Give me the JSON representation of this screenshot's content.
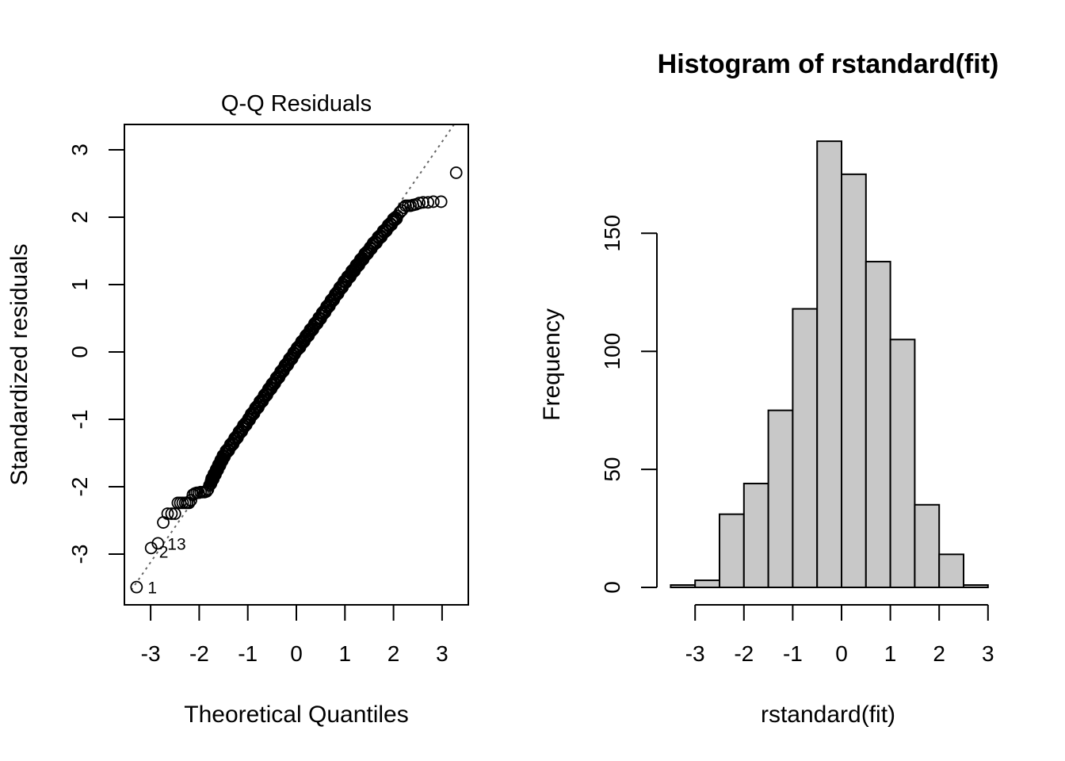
{
  "chart_data": [
    {
      "type": "scatter",
      "title": "Q-Q Residuals",
      "xlabel": "Theoretical Quantiles",
      "ylabel": "Standardized residuals",
      "xlim": [
        -3.4,
        3.5
      ],
      "ylim": [
        -3.6,
        3.4
      ],
      "x_ticks": [
        "-3",
        "-2",
        "-1",
        "0",
        "1",
        "2",
        "3"
      ],
      "y_ticks": [
        "-3",
        "-2",
        "-1",
        "0",
        "1",
        "2",
        "3"
      ],
      "reference_line": {
        "intercept": 0,
        "slope": 1.04,
        "style": "dotted",
        "color": "#666666"
      },
      "points": [
        [
          -3.29,
          -3.49
        ],
        [
          -2.99,
          -2.91
        ],
        [
          -2.85,
          -2.84
        ],
        [
          -2.74,
          -2.53
        ],
        [
          -2.65,
          -2.4
        ],
        [
          -2.57,
          -2.4
        ],
        [
          -2.5,
          -2.4
        ],
        [
          -2.44,
          -2.24
        ],
        [
          -2.39,
          -2.24
        ],
        [
          -2.34,
          -2.24
        ],
        [
          -2.29,
          -2.24
        ],
        [
          -2.25,
          -2.24
        ],
        [
          -2.21,
          -2.24
        ],
        [
          -2.17,
          -2.2
        ],
        [
          -2.13,
          -2.12
        ],
        [
          -2.09,
          -2.1
        ],
        [
          -2.05,
          -2.09
        ],
        [
          -2.01,
          -2.09
        ],
        [
          -1.97,
          -2.08
        ],
        [
          -1.93,
          -2.08
        ],
        [
          -1.89,
          -2.08
        ],
        [
          -1.85,
          -2.07
        ],
        [
          -1.82,
          -2.04
        ],
        [
          -1.79,
          -1.98
        ],
        [
          -1.76,
          -1.93
        ],
        [
          2.08,
          2.02
        ],
        [
          2.13,
          2.07
        ],
        [
          2.17,
          2.1
        ],
        [
          2.21,
          2.14
        ],
        [
          2.25,
          2.17
        ],
        [
          2.3,
          2.17
        ],
        [
          2.35,
          2.17
        ],
        [
          2.4,
          2.18
        ],
        [
          2.46,
          2.19
        ],
        [
          2.53,
          2.21
        ],
        [
          2.61,
          2.22
        ],
        [
          2.71,
          2.22
        ],
        [
          2.82,
          2.23
        ],
        [
          2.98,
          2.23
        ],
        [
          3.29,
          2.66
        ]
      ],
      "labeled_points": [
        {
          "label": "1",
          "x": -3.29,
          "y": -3.49
        },
        {
          "label": "2",
          "x": -2.99,
          "y": -2.91
        },
        {
          "label": "13",
          "x": -2.85,
          "y": -2.84
        }
      ],
      "dense_band": [
        [
          -1.76,
          -1.93
        ],
        [
          -1.5,
          -1.55
        ],
        [
          -1.0,
          -1.02
        ],
        [
          -0.5,
          -0.5
        ],
        [
          0,
          0.02
        ],
        [
          0.5,
          0.52
        ],
        [
          1.0,
          1.04
        ],
        [
          1.5,
          1.52
        ],
        [
          2.08,
          2.02
        ]
      ],
      "marker": "open-circle"
    },
    {
      "type": "bar",
      "title": "Histogram of rstandard(fit)",
      "xlabel": "rstandard(fit)",
      "ylabel": "Frequency",
      "bin_edges": [
        -3.5,
        -3.0,
        -2.5,
        -2.0,
        -1.5,
        -1.0,
        -0.5,
        0.0,
        0.5,
        1.0,
        1.5,
        2.0,
        2.5,
        3.0
      ],
      "values": [
        1,
        3,
        31,
        44,
        75,
        118,
        189,
        175,
        138,
        105,
        35,
        14,
        1
      ],
      "x_ticks": [
        "-3",
        "-2",
        "-1",
        "0",
        "1",
        "2",
        "3"
      ],
      "y_ticks": [
        "0",
        "50",
        "100",
        "150"
      ],
      "ylim": [
        0,
        189
      ],
      "bar_color": "#c8c8c8"
    }
  ]
}
